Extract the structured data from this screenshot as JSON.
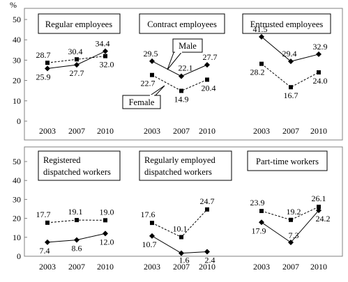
{
  "chart_data": {
    "type": "line",
    "y_unit": "%",
    "ylim": [
      0,
      50
    ],
    "yticks": [
      0,
      10,
      20,
      30,
      40,
      50
    ],
    "x": [
      "2003",
      "2007",
      "2010"
    ],
    "panels": [
      {
        "title_lines": [
          "Regular employees"
        ],
        "series": [
          {
            "style": "solid",
            "marker": "diamond",
            "values": [
              25.9,
              27.7,
              34.4
            ]
          },
          {
            "style": "dashed",
            "marker": "square",
            "values": [
              28.7,
              30.4,
              32.0
            ]
          }
        ],
        "labels": [
          "25.9",
          "27.7",
          "34.4",
          "28.7",
          "30.4",
          "32.0"
        ]
      },
      {
        "title_lines": [
          "Contract employees"
        ],
        "series": [
          {
            "name": "Male",
            "style": "solid",
            "marker": "diamond",
            "values": [
              29.5,
              22.1,
              27.7
            ]
          },
          {
            "name": "Female",
            "style": "dashed",
            "marker": "square",
            "values": [
              22.7,
              14.9,
              20.4
            ]
          }
        ],
        "labels": [
          "29.5",
          "22.1",
          "27.7",
          "22.7",
          "14.9",
          "20.4"
        ],
        "callouts": [
          "Male",
          "Female"
        ]
      },
      {
        "title_lines": [
          "Entrusted employees"
        ],
        "series": [
          {
            "style": "solid",
            "marker": "diamond",
            "values": [
              41.5,
              29.4,
              32.9
            ]
          },
          {
            "style": "dashed",
            "marker": "square",
            "values": [
              28.2,
              16.7,
              24.0
            ]
          }
        ],
        "labels": [
          "41.5",
          "29.4",
          "32.9",
          "28.2",
          "16.7",
          "24.0"
        ]
      },
      {
        "title_lines": [
          "Registered",
          "dispatched workers"
        ],
        "series": [
          {
            "style": "solid",
            "marker": "diamond",
            "values": [
              7.4,
              8.6,
              12.0
            ]
          },
          {
            "style": "dashed",
            "marker": "square",
            "values": [
              17.7,
              19.1,
              19.0
            ]
          }
        ],
        "labels": [
          "7.4",
          "8.6",
          "12.0",
          "17.7",
          "19.1",
          "19.0"
        ]
      },
      {
        "title_lines": [
          "Regularly employed",
          "dispatched workers"
        ],
        "series": [
          {
            "style": "solid",
            "marker": "diamond",
            "values": [
              10.7,
              1.6,
              2.4
            ]
          },
          {
            "style": "dashed",
            "marker": "square",
            "values": [
              17.6,
              10.1,
              24.7
            ]
          }
        ],
        "labels": [
          "10.7",
          "1.6",
          "2.4",
          "17.6",
          "10.1",
          "24.7"
        ]
      },
      {
        "title_lines": [
          "Part-time workers"
        ],
        "series": [
          {
            "style": "solid",
            "marker": "diamond",
            "values": [
              17.9,
              7.3,
              24.2
            ]
          },
          {
            "style": "dashed",
            "marker": "square",
            "values": [
              23.9,
              19.2,
              26.1
            ]
          }
        ],
        "labels": [
          "17.9",
          "7.3",
          "24.2",
          "23.9",
          "19.2",
          "26.1"
        ]
      }
    ]
  }
}
